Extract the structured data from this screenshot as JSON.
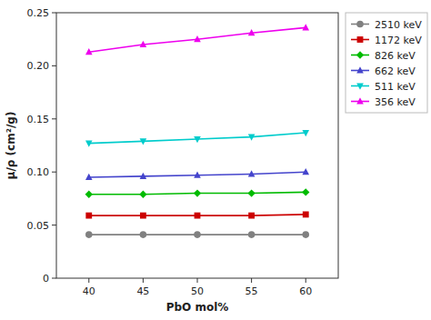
{
  "chart_data": {
    "type": "line",
    "x": [
      40,
      45,
      50,
      55,
      60
    ],
    "series": [
      {
        "name": "2510 keV",
        "color": "#808080",
        "marker": "circle",
        "values": [
          0.041,
          0.041,
          0.041,
          0.041,
          0.041
        ]
      },
      {
        "name": "1172 keV",
        "color": "#cc0000",
        "marker": "square",
        "values": [
          0.059,
          0.059,
          0.059,
          0.059,
          0.06
        ]
      },
      {
        "name": "826 keV",
        "color": "#00bb00",
        "marker": "diamond",
        "values": [
          0.079,
          0.079,
          0.08,
          0.08,
          0.081
        ]
      },
      {
        "name": "662 keV",
        "color": "#4444cc",
        "marker": "triangle-up",
        "values": [
          0.095,
          0.096,
          0.097,
          0.098,
          0.1
        ]
      },
      {
        "name": "511 keV",
        "color": "#00cccc",
        "marker": "triangle-down",
        "values": [
          0.127,
          0.129,
          0.131,
          0.133,
          0.137
        ]
      },
      {
        "name": "356 keV",
        "color": "#ee00ee",
        "marker": "triangle-up",
        "values": [
          0.213,
          0.22,
          0.225,
          0.231,
          0.236
        ]
      }
    ],
    "x_label": "PbO mol%",
    "y_label": "μ/ρ (cm²/g)",
    "xlim": [
      37,
      63
    ],
    "ylim": [
      0,
      0.25
    ],
    "xticks": [
      40,
      45,
      50,
      55,
      60
    ],
    "yticks": [
      0,
      0.05,
      {
        "value": 0.1,
        "label": "0.10"
      },
      0.15,
      {
        "value": 0.2,
        "label": "0.20"
      },
      0.25
    ],
    "grid": false,
    "legend": "upper right"
  }
}
